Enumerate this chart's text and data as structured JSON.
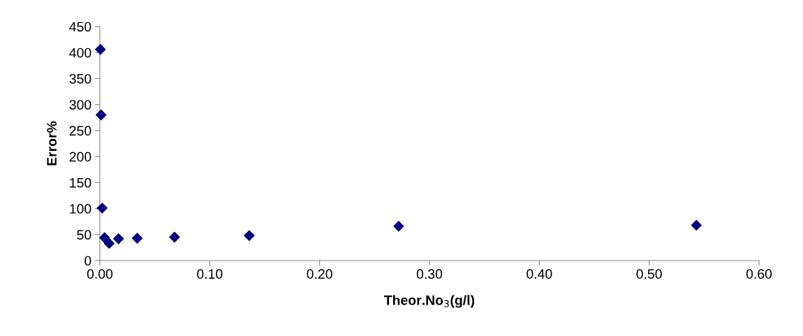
{
  "chart_data": {
    "type": "scatter",
    "xlabel": "Theor.No$_{3}$(g/l)",
    "ylabel": "Error%",
    "x": [
      0.0005,
      0.0011,
      0.0021,
      0.0043,
      0.0085,
      0.017,
      0.034,
      0.068,
      0.136,
      0.272,
      0.543
    ],
    "series": [
      {
        "color": "#000080",
        "values": [
          406,
          280,
          101,
          44,
          33,
          42,
          43,
          45,
          48,
          66,
          68
        ]
      }
    ],
    "xlim": [
      0,
      0.6
    ],
    "xticks": [
      {
        "value": 0,
        "label": "0.00"
      },
      {
        "value": 0.1,
        "label": "0.10"
      },
      {
        "value": 0.2,
        "label": "0.20"
      },
      {
        "value": 0.3,
        "label": "0.30"
      },
      {
        "value": 0.4,
        "label": "0.40"
      },
      {
        "value": 0.5,
        "label": "0.50"
      },
      {
        "value": 0.6,
        "label": "0.60"
      }
    ],
    "ylim": [
      0,
      450
    ],
    "yticks": [
      0,
      50,
      100,
      150,
      200,
      250,
      300,
      350,
      400,
      450
    ],
    "marker": "diamond",
    "grid": false,
    "legend": false
  }
}
